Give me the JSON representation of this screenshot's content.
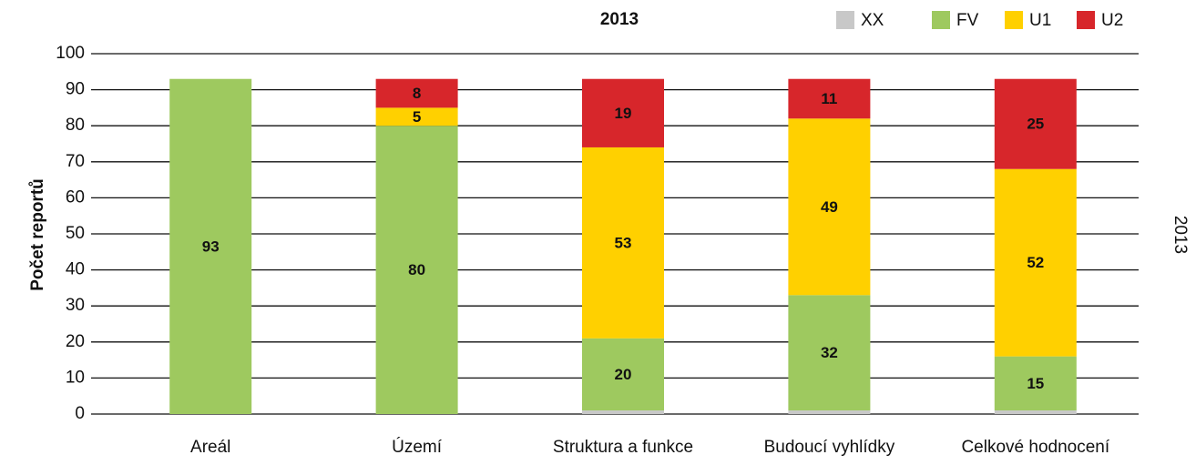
{
  "chart_data": {
    "type": "stacked_bar",
    "title": "2013",
    "y_label": "Počet reportů",
    "right_label": "2013",
    "categories": [
      "Areál",
      "Území",
      "Struktura a funkce",
      "Budoucí vyhlídky",
      "Celkové hodnocení"
    ],
    "series": [
      {
        "name": "XX",
        "color": "#c8c8c8",
        "values": [
          0,
          0,
          1,
          1,
          1
        ]
      },
      {
        "name": "FV",
        "color": "#9ec95f",
        "values": [
          93,
          80,
          20,
          32,
          15
        ]
      },
      {
        "name": "U1",
        "color": "#ffd000",
        "values": [
          0,
          5,
          53,
          49,
          52
        ]
      },
      {
        "name": "U2",
        "color": "#d7262b",
        "values": [
          0,
          8,
          19,
          11,
          25
        ]
      }
    ],
    "ylim": [
      0,
      100
    ],
    "yticks": [
      0,
      10,
      20,
      30,
      40,
      50,
      60,
      70,
      80,
      90,
      100
    ],
    "grid": true,
    "legend": "top-right"
  }
}
